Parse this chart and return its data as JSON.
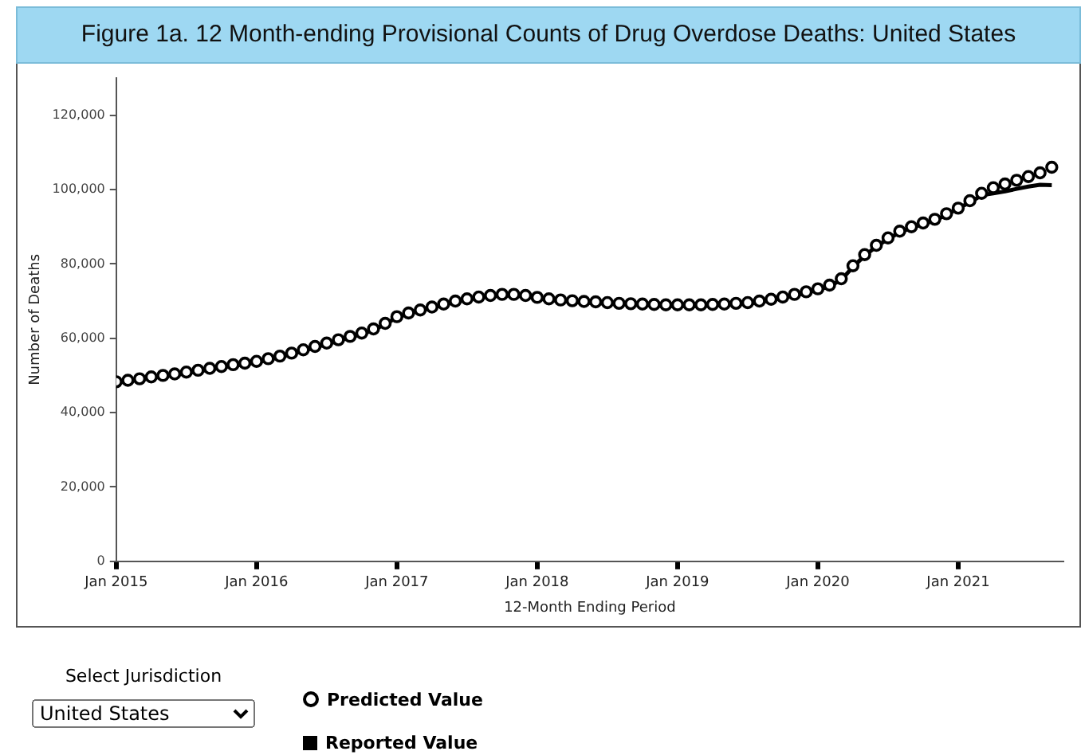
{
  "chart_data": {
    "type": "line",
    "title": "Figure 1a. 12 Month-ending Provisional Counts of Drug Overdose Deaths: United States",
    "xlabel": "12-Month Ending Period",
    "ylabel": "Number of Deaths",
    "x": [
      "2015-01",
      "2015-02",
      "2015-03",
      "2015-04",
      "2015-05",
      "2015-06",
      "2015-07",
      "2015-08",
      "2015-09",
      "2015-10",
      "2015-11",
      "2015-12",
      "2016-01",
      "2016-02",
      "2016-03",
      "2016-04",
      "2016-05",
      "2016-06",
      "2016-07",
      "2016-08",
      "2016-09",
      "2016-10",
      "2016-11",
      "2016-12",
      "2017-01",
      "2017-02",
      "2017-03",
      "2017-04",
      "2017-05",
      "2017-06",
      "2017-07",
      "2017-08",
      "2017-09",
      "2017-10",
      "2017-11",
      "2017-12",
      "2018-01",
      "2018-02",
      "2018-03",
      "2018-04",
      "2018-05",
      "2018-06",
      "2018-07",
      "2018-08",
      "2018-09",
      "2018-10",
      "2018-11",
      "2018-12",
      "2019-01",
      "2019-02",
      "2019-03",
      "2019-04",
      "2019-05",
      "2019-06",
      "2019-07",
      "2019-08",
      "2019-09",
      "2019-10",
      "2019-11",
      "2019-12",
      "2020-01",
      "2020-02",
      "2020-03",
      "2020-04",
      "2020-05",
      "2020-06",
      "2020-07",
      "2020-08",
      "2020-09",
      "2020-10",
      "2020-11",
      "2020-12",
      "2021-01",
      "2021-02",
      "2021-03",
      "2021-04",
      "2021-05",
      "2021-06",
      "2021-07",
      "2021-08",
      "2021-09"
    ],
    "series": [
      {
        "name": "Predicted Value",
        "type": "scatter",
        "marker": "circle",
        "color": "#000000",
        "values": [
          48300,
          48700,
          49100,
          49600,
          50000,
          50400,
          50900,
          51400,
          51900,
          52400,
          52900,
          53300,
          53800,
          54500,
          55200,
          56000,
          56900,
          57800,
          58700,
          59600,
          60500,
          61400,
          62500,
          64000,
          65800,
          66800,
          67600,
          68400,
          69200,
          70000,
          70600,
          71100,
          71500,
          71800,
          71800,
          71500,
          71000,
          70600,
          70300,
          70100,
          69900,
          69800,
          69600,
          69400,
          69300,
          69200,
          69100,
          69000,
          69000,
          69000,
          69000,
          69100,
          69200,
          69400,
          69600,
          70000,
          70500,
          71100,
          71800,
          72500,
          73300,
          74300,
          76000,
          79500,
          82500,
          85000,
          87000,
          88800,
          90000,
          91000,
          92000,
          93500,
          95000,
          97000,
          99000,
          100500,
          101500,
          102500,
          103500,
          104500,
          106000
        ]
      },
      {
        "name": "Reported Value",
        "type": "line",
        "marker": "none",
        "color": "#000000",
        "values": [
          48000,
          48400,
          48800,
          49300,
          49700,
          50100,
          50600,
          51100,
          51600,
          52100,
          52600,
          53000,
          53500,
          54200,
          54900,
          55700,
          56600,
          57500,
          58400,
          59300,
          60200,
          61100,
          62200,
          63800,
          65600,
          66600,
          67400,
          68200,
          69000,
          69800,
          70400,
          70900,
          71300,
          71500,
          71500,
          71200,
          70700,
          70300,
          70000,
          69800,
          69600,
          69500,
          69300,
          69100,
          69000,
          68900,
          68800,
          68700,
          68700,
          68700,
          68700,
          68800,
          68900,
          69100,
          69300,
          69700,
          70200,
          70800,
          71500,
          72200,
          73000,
          74000,
          75700,
          79200,
          82200,
          84700,
          86700,
          88500,
          89700,
          90700,
          91700,
          93200,
          95000,
          96500,
          98500,
          99000,
          99500,
          100200,
          100800,
          101300,
          101200
        ]
      }
    ],
    "xlim": [
      "2015-01",
      "2021-10"
    ],
    "xticks": [
      {
        "value": "2015-01",
        "label": "Jan 2015"
      },
      {
        "value": "2016-01",
        "label": "Jan 2016"
      },
      {
        "value": "2017-01",
        "label": "Jan 2017"
      },
      {
        "value": "2018-01",
        "label": "Jan 2018"
      },
      {
        "value": "2019-01",
        "label": "Jan 2019"
      },
      {
        "value": "2020-01",
        "label": "Jan 2020"
      },
      {
        "value": "2021-01",
        "label": "Jan 2021"
      }
    ],
    "ylim": [
      0,
      130000
    ],
    "yticks": [
      {
        "value": 0,
        "label": "0"
      },
      {
        "value": 20000,
        "label": "20,000"
      },
      {
        "value": 40000,
        "label": "40,000"
      },
      {
        "value": 60000,
        "label": "60,000"
      },
      {
        "value": 80000,
        "label": "80,000"
      },
      {
        "value": 100000,
        "label": "100,000"
      },
      {
        "value": 120000,
        "label": "120,000"
      }
    ],
    "grid": false,
    "legend": "bottom",
    "annotations": [
      "Select Jurisdiction",
      "United States"
    ]
  }
}
